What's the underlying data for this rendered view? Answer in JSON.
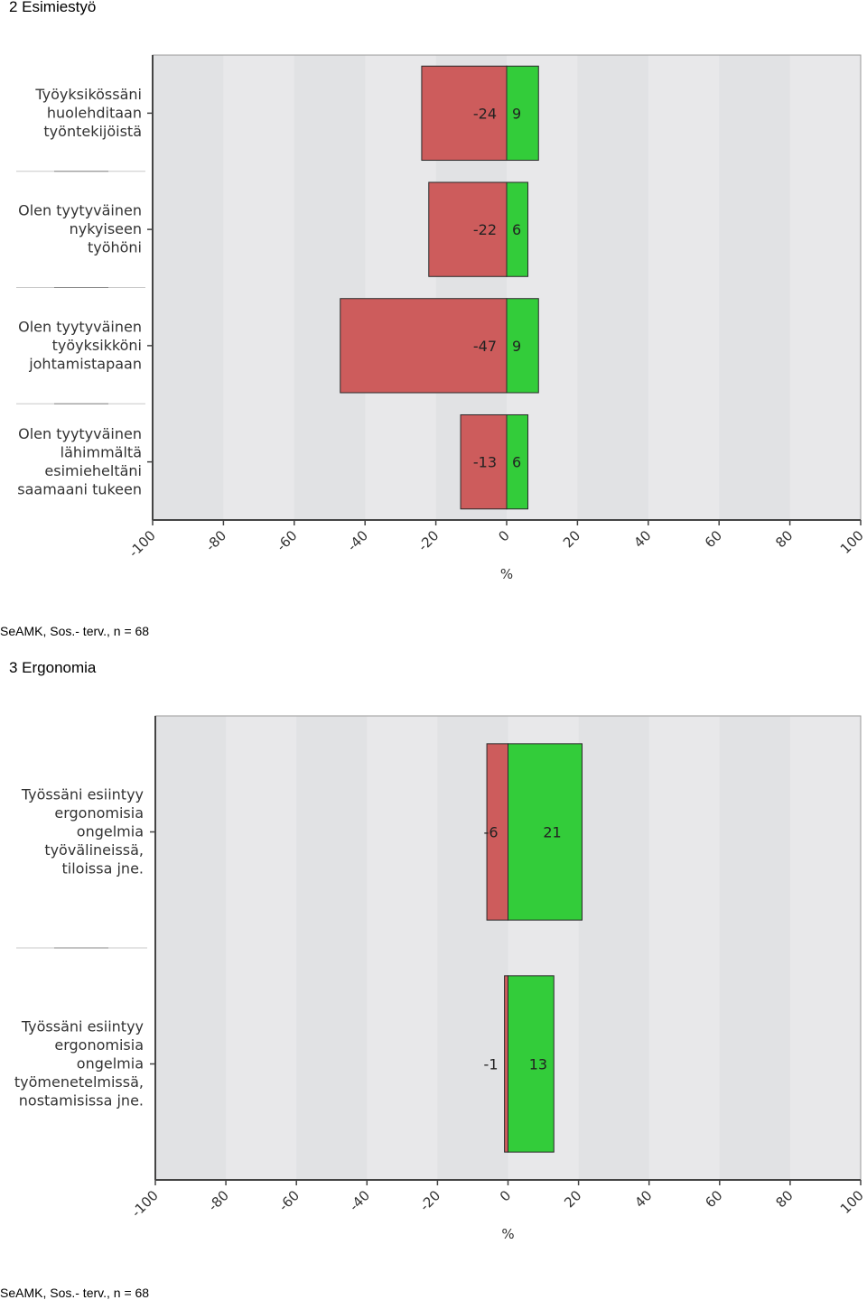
{
  "sections": [
    {
      "title": "2 Esimiestyö",
      "footer": "SeAMK, Sos.- terv., n = 68"
    },
    {
      "title": "3 Ergonomia",
      "footer": "SeAMK, Sos.- terv., n = 68"
    }
  ],
  "colors": {
    "negative": "#cd5c5c",
    "positive": "#33cc3a",
    "plot_bg": "#e8e8ea",
    "band": "#e1e2e4"
  },
  "chart_data": [
    {
      "type": "bar",
      "orientation": "horizontal",
      "stacked": "diverging",
      "categories": [
        [
          "Työyksikössäni",
          "huolehditaan",
          "työntekijöistä"
        ],
        [
          "Olen tyytyväinen",
          "nykyiseen",
          "työhöni"
        ],
        [
          "Olen tyytyväinen",
          "työyksikköni",
          "johtamistapaan"
        ],
        [
          "Olen tyytyväinen",
          "lähimmältä",
          "esimieheltäni",
          "saamaani tukeen"
        ]
      ],
      "series": [
        {
          "values": [
            -24,
            -22,
            -47,
            -13
          ],
          "color": "#cd5c5c"
        },
        {
          "values": [
            9,
            6,
            9,
            6
          ],
          "color": "#33cc3a"
        }
      ],
      "xlabel": "%",
      "xlim": [
        -100,
        100
      ],
      "xticks": [
        "-100",
        "-80",
        "-60",
        "-40",
        "-20",
        "0",
        "20",
        "40",
        "60",
        "80",
        "100"
      ]
    },
    {
      "type": "bar",
      "orientation": "horizontal",
      "stacked": "diverging",
      "categories": [
        [
          "Työssäni esiintyy",
          "ergonomisia",
          "ongelmia",
          "työvälineissä,",
          "tiloissa jne."
        ],
        [
          "Työssäni esiintyy",
          "ergonomisia",
          "ongelmia",
          "työmenetelmissä,",
          "nostamisissa jne."
        ]
      ],
      "series": [
        {
          "values": [
            -6,
            -1
          ],
          "color": "#cd5c5c"
        },
        {
          "values": [
            21,
            13
          ],
          "color": "#33cc3a"
        }
      ],
      "xlabel": "%",
      "xlim": [
        -100,
        100
      ],
      "xticks": [
        "-100",
        "-80",
        "-60",
        "-40",
        "-20",
        "0",
        "20",
        "40",
        "60",
        "80",
        "100"
      ]
    }
  ]
}
